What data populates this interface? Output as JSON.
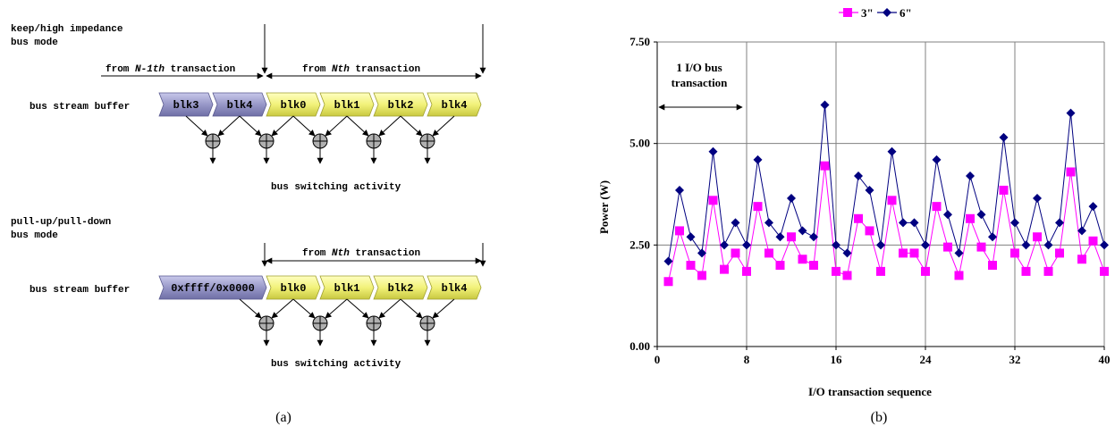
{
  "diagram": {
    "top": {
      "mode_line1": "keep/high impedance",
      "mode_line2": "bus mode",
      "prev_prefix": "from ",
      "prev_ital": "N-1th",
      "prev_suffix": " transaction",
      "next_prefix": "from ",
      "next_ital": "Nth",
      "next_suffix": " transaction",
      "buffer_label": "bus stream buffer",
      "old_blocks": [
        "blk3",
        "blk4"
      ],
      "new_blocks": [
        "blk0",
        "blk1",
        "blk2",
        "blk4"
      ],
      "activity_label": "bus switching activity"
    },
    "bottom": {
      "mode_line1": "pull-up/pull-down",
      "mode_line2": "bus mode",
      "next_prefix": "from ",
      "next_ital": "Nth",
      "next_suffix": " transaction",
      "buffer_label": "bus stream buffer",
      "old_block": "0xffff/0x0000",
      "new_blocks": [
        "blk0",
        "blk1",
        "blk2",
        "blk4"
      ],
      "activity_label": "bus switching activity"
    },
    "caption": "(a)"
  },
  "colors": {
    "old_block": "#9898c8",
    "new_block": "#f2f27a",
    "series_3in": "#ff00ff",
    "series_6in": "#000080",
    "xor": "#b0b0b0"
  },
  "chart_data": {
    "type": "line",
    "legend": [
      "3\"",
      "6\""
    ],
    "legend_position": "top",
    "xlabel": "I/O transaction sequence",
    "ylabel": "Power (W)",
    "xlim": [
      0,
      40
    ],
    "ylim": [
      0,
      7.5
    ],
    "xticks": [
      "0",
      "8",
      "16",
      "24",
      "32",
      "40"
    ],
    "yticks": [
      "0.00",
      "2.50",
      "5.00",
      "7.50"
    ],
    "grid": true,
    "annotation_line1": "1 I/O bus",
    "annotation_line2": "transaction",
    "x": [
      1,
      2,
      3,
      4,
      5,
      6,
      7,
      8,
      9,
      10,
      11,
      12,
      13,
      14,
      15,
      16,
      17,
      18,
      19,
      20,
      21,
      22,
      23,
      24,
      25,
      26,
      27,
      28,
      29,
      30,
      31,
      32,
      33,
      34,
      35,
      36,
      37,
      38,
      39,
      40
    ],
    "series": [
      {
        "name": "3\"",
        "marker": "square",
        "values": [
          1.6,
          2.85,
          2.0,
          1.75,
          3.6,
          1.9,
          2.3,
          1.85,
          3.45,
          2.3,
          2.0,
          2.7,
          2.15,
          2.0,
          4.45,
          1.85,
          1.75,
          3.15,
          2.85,
          1.85,
          3.6,
          2.3,
          2.3,
          1.85,
          3.45,
          2.45,
          1.75,
          3.15,
          2.45,
          2.0,
          3.85,
          2.3,
          1.85,
          2.7,
          1.85,
          2.3,
          4.3,
          2.15,
          2.6,
          1.85
        ]
      },
      {
        "name": "6\"",
        "marker": "diamond",
        "values": [
          2.1,
          3.85,
          2.7,
          2.3,
          4.8,
          2.5,
          3.05,
          2.5,
          4.6,
          3.05,
          2.7,
          3.65,
          2.85,
          2.7,
          5.95,
          2.5,
          2.3,
          4.2,
          3.85,
          2.5,
          4.8,
          3.05,
          3.05,
          2.5,
          4.6,
          3.25,
          2.3,
          4.2,
          3.25,
          2.7,
          5.15,
          3.05,
          2.5,
          3.65,
          2.5,
          3.05,
          5.75,
          2.85,
          3.45,
          2.5
        ]
      }
    ],
    "caption": "(b)"
  }
}
